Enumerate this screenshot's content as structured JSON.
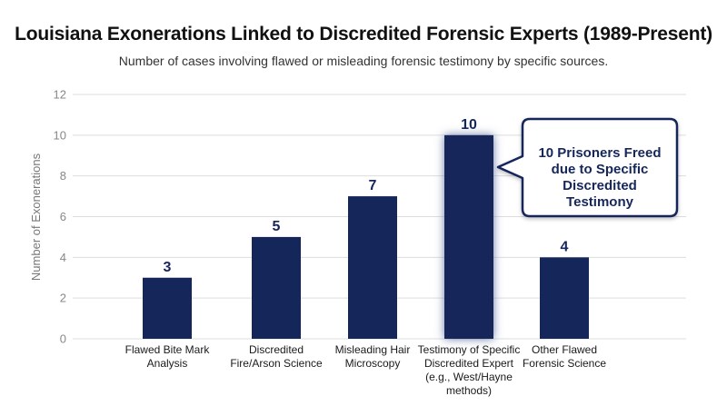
{
  "chart_data": {
    "type": "bar",
    "title": "Louisiana Exonerations Linked to Discredited Forensic Experts (1989-Present)",
    "subtitle": "Number of cases involving flawed or misleading forensic testimony by specific sources.",
    "ylabel": "Number of Exonerations",
    "xlabel": "",
    "ylim": [
      0,
      12
    ],
    "yticks": [
      0,
      2,
      4,
      6,
      8,
      10,
      12
    ],
    "grid": true,
    "categories": [
      [
        "Flawed Bite Mark",
        "Analysis"
      ],
      [
        "Discredited",
        "Fire/Arson Science"
      ],
      [
        "Misleading Hair",
        "Microscopy"
      ],
      [
        "Testimony of Specific",
        "Discredited Expert",
        "(e.g., West/Hayne",
        "methods)"
      ],
      [
        "Other Flawed",
        "Forensic Science"
      ]
    ],
    "values": [
      3,
      5,
      7,
      10,
      4
    ],
    "highlight_index": 3,
    "annotation": {
      "lines": [
        "10 Prisoners Freed",
        "due to Specific",
        "Discredited",
        "Testimony"
      ]
    },
    "colors": {
      "bar": "#15265a",
      "highlight_glow": "#5b6d9e",
      "grid": "#dddddd",
      "callout_border": "#15265a"
    }
  }
}
